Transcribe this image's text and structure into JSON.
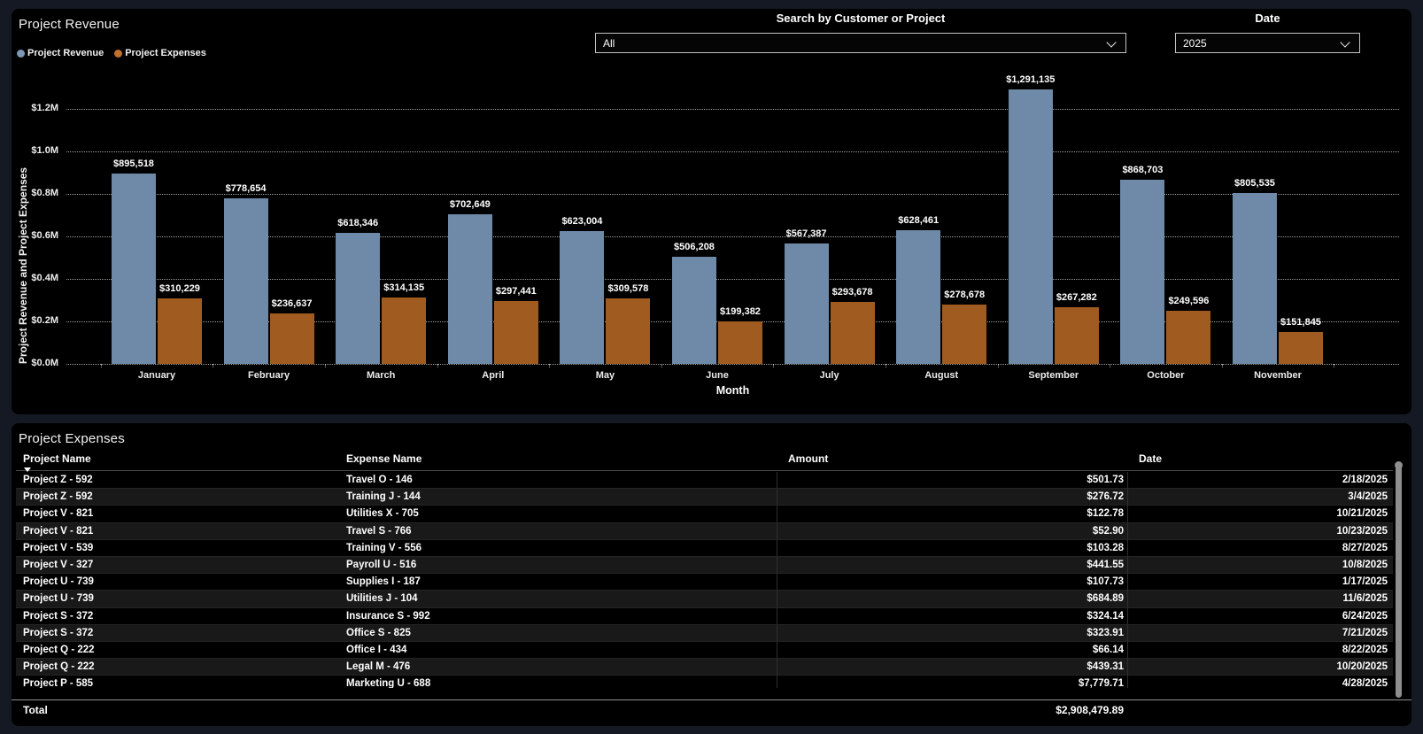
{
  "theme": {
    "page_bg": "#141923",
    "panel_bg": "#000000",
    "revenue_color": "#6E8AA8",
    "expense_color": "#A05C20",
    "text_color": "#FFFFFF"
  },
  "revenue_panel": {
    "title": "Project Revenue",
    "legend": [
      {
        "label": "Project Revenue",
        "color": "#7A98B6"
      },
      {
        "label": "Project Expenses",
        "color": "#C06F2D"
      }
    ],
    "search_filter": {
      "label": "Search by Customer or Project",
      "value": "All",
      "chevron_icon": "chevron-down"
    },
    "date_filter": {
      "label": "Date",
      "value": "2025",
      "chevron_icon": "chevron-down"
    }
  },
  "chart_data": {
    "type": "bar",
    "title": "Project Revenue",
    "xlabel": "Month",
    "ylabel": "Project Revenue and Project Expenses",
    "ylim": [
      0,
      1370000
    ],
    "grid": "dotted-horizontal",
    "legend_position": "top-left",
    "categories": [
      "January",
      "February",
      "March",
      "April",
      "May",
      "June",
      "July",
      "August",
      "September",
      "October",
      "November"
    ],
    "y_ticks": [
      {
        "value": 0,
        "label": "$0.0M"
      },
      {
        "value": 200000,
        "label": "$0.2M"
      },
      {
        "value": 400000,
        "label": "$0.4M"
      },
      {
        "value": 600000,
        "label": "$0.6M"
      },
      {
        "value": 800000,
        "label": "$0.8M"
      },
      {
        "value": 1000000,
        "label": "$1.0M"
      },
      {
        "value": 1200000,
        "label": "$1.2M"
      }
    ],
    "series": [
      {
        "name": "Project Revenue",
        "color": "#6E8AA8",
        "values": [
          895518,
          778654,
          618346,
          702649,
          623004,
          506208,
          567387,
          628461,
          1291135,
          868703,
          805535
        ],
        "labels": [
          "$895,518",
          "$778,654",
          "$618,346",
          "$702,649",
          "$623,004",
          "$506,208",
          "$567,387",
          "$628,461",
          "$1,291,135",
          "$868,703",
          "$805,535"
        ]
      },
      {
        "name": "Project Expenses",
        "color": "#A05C20",
        "values": [
          310229,
          236637,
          314135,
          297441,
          309578,
          199382,
          293678,
          278678,
          267282,
          249596,
          151845
        ],
        "labels": [
          "$310,229",
          "$236,637",
          "$314,135",
          "$297,441",
          "$309,578",
          "$199,382",
          "$293,678",
          "$278,678",
          "$267,282",
          "$249,596",
          "$151,845"
        ]
      }
    ]
  },
  "expenses_table": {
    "title": "Project Expenses",
    "columns": [
      {
        "label": "Project Name",
        "sorted": "desc"
      },
      {
        "label": "Expense Name",
        "sorted": "none"
      },
      {
        "label": "Amount",
        "sorted": "none"
      },
      {
        "label": "Date",
        "sorted": "none"
      }
    ],
    "rows": [
      {
        "project": "Project Z - 592",
        "expense": "Travel O - 146",
        "amount": "$501.73",
        "date": "2/18/2025"
      },
      {
        "project": "Project Z - 592",
        "expense": "Training J - 144",
        "amount": "$276.72",
        "date": "3/4/2025"
      },
      {
        "project": "Project V - 821",
        "expense": "Utilities X - 705",
        "amount": "$122.78",
        "date": "10/21/2025"
      },
      {
        "project": "Project V - 821",
        "expense": "Travel S - 766",
        "amount": "$52.90",
        "date": "10/23/2025"
      },
      {
        "project": "Project V - 539",
        "expense": "Training V - 556",
        "amount": "$103.28",
        "date": "8/27/2025"
      },
      {
        "project": "Project V - 327",
        "expense": "Payroll U - 516",
        "amount": "$441.55",
        "date": "10/8/2025"
      },
      {
        "project": "Project U - 739",
        "expense": "Supplies I - 187",
        "amount": "$107.73",
        "date": "1/17/2025"
      },
      {
        "project": "Project U - 739",
        "expense": "Utilities J - 104",
        "amount": "$684.89",
        "date": "11/6/2025"
      },
      {
        "project": "Project S - 372",
        "expense": "Insurance S - 992",
        "amount": "$324.14",
        "date": "6/24/2025"
      },
      {
        "project": "Project S - 372",
        "expense": "Office S - 825",
        "amount": "$323.91",
        "date": "7/21/2025"
      },
      {
        "project": "Project Q - 222",
        "expense": "Office I - 434",
        "amount": "$66.14",
        "date": "8/22/2025"
      },
      {
        "project": "Project Q - 222",
        "expense": "Legal M - 476",
        "amount": "$439.31",
        "date": "10/20/2025"
      },
      {
        "project": "Project P - 585",
        "expense": "Marketing U - 688",
        "amount": "$7,779.71",
        "date": "4/28/2025"
      }
    ],
    "total": {
      "label": "Total",
      "amount": "$2,908,479.89"
    }
  }
}
